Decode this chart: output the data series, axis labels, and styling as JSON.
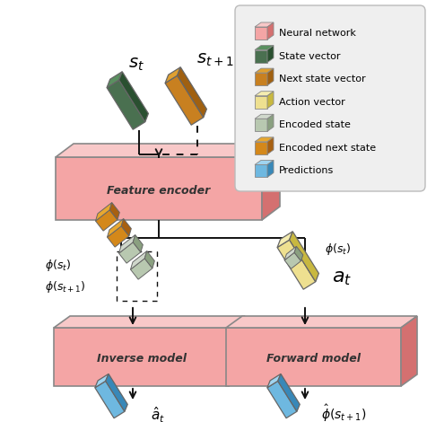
{
  "fig_width": 4.76,
  "fig_height": 4.7,
  "dpi": 100,
  "colors": {
    "nn_face": "#F4A5A5",
    "nn_top": "#F8C8C8",
    "nn_side": "#D47070",
    "state_face": "#4A7050",
    "state_top": "#5A9060",
    "state_side": "#2A5030",
    "next_face": "#C88020",
    "next_top": "#DFA030",
    "next_side": "#A06010",
    "action_face": "#EEE090",
    "action_top": "#F5EDB0",
    "action_side": "#C8B840",
    "enc_state_face": "#B8C8B0",
    "enc_state_top": "#D0D8CC",
    "enc_state_side": "#8AA080",
    "enc_next_face": "#D4881A",
    "enc_next_top": "#E8A830",
    "enc_next_side": "#A86010",
    "pred_face": "#6EB8E0",
    "pred_top": "#A0D4F0",
    "pred_side": "#3888B8",
    "bg": "#FFFFFF",
    "legend_bg": "#EFEFEF",
    "legend_edge": "#BBBBBB",
    "arrow": "#111111",
    "box_edge": "#888888",
    "text": "#222222"
  },
  "legend_items": [
    [
      "Neural network",
      "#F4A5A5",
      "#F8C8C8",
      "#D47070"
    ],
    [
      "State vector",
      "#4A7050",
      "#5A9060",
      "#2A5030"
    ],
    [
      "Next state vector",
      "#C88020",
      "#DFA030",
      "#A06010"
    ],
    [
      "Action vector",
      "#EEE090",
      "#F5EDB0",
      "#C8B840"
    ],
    [
      "Encoded state",
      "#B8C8B0",
      "#D0D8CC",
      "#8AA080"
    ],
    [
      "Encoded next state",
      "#D4881A",
      "#E8A830",
      "#A86010"
    ],
    [
      "Predictions",
      "#6EB8E0",
      "#A0D4F0",
      "#3888B8"
    ]
  ]
}
